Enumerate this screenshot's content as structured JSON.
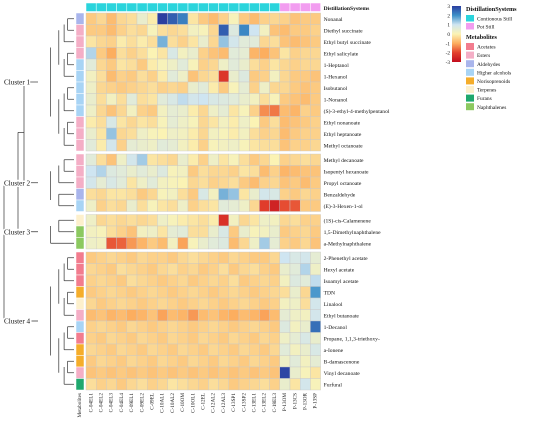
{
  "chart_data": {
    "type": "heatmap",
    "columns": [
      "C-04EL1",
      "C-04EL2",
      "C-04EL3",
      "C-04EL4",
      "C-09EL1",
      "C-09EL2",
      "C-09EL",
      "C-10AL1",
      "C-10AL2",
      "C-10OM",
      "C-10OL1",
      "C-12EL",
      "C-12AL2",
      "C-12AL3",
      "C-13SP1",
      "C-13SP2",
      "C-13EL1",
      "C-13EL2",
      "C-18EL3",
      "P-13OM",
      "P-13CS",
      "P-13OR",
      "P-13SP"
    ],
    "rows": [
      "Nonanal",
      "Diethyl succinate",
      "Ethyl butyl succinate",
      "Ethyl salicylate",
      "1-Heptanol",
      "1-Hexanol",
      "Isobutanol",
      "1-Nonanol",
      "(S)-3-ethyl-4-methylpentanol",
      "Ethyl nonanoate",
      "Ethyl heptanoate",
      "Methyl octanoate",
      "Methyl decanoate",
      "Isopentyl hexanoate",
      "Propyl octanoate",
      "Benzaldehyde",
      "(E)-3-Hexen-1-ol",
      "(1S)-cis-Calamenene",
      "1,5-Dimethylnaphthalene",
      "a-Methylnaphthalene",
      "2-Phenethyl acetate",
      "Hexyl acetate",
      "Isoamyl acetate",
      "TDN",
      "Linalool",
      "Ethyl butanoate",
      "1-Decanol",
      "Propane, 1,1,3-triethoxy-",
      "a-Ionene",
      "B-damascenone",
      "Vinyl decanoate",
      "Furfural"
    ],
    "values": [
      [
        -0.6,
        -0.4,
        -0.8,
        -0.4,
        -0.3,
        0.4,
        -0.1,
        3.0,
        2.6,
        2.2,
        -0.2,
        -0.6,
        -0.8,
        -0.5,
        0.1,
        -0.6,
        -0.8,
        -0.5,
        -0.4,
        -0.5,
        -0.7,
        -0.6,
        -0.6
      ],
      [
        -0.6,
        -0.6,
        -0.8,
        -0.5,
        -0.3,
        -0.4,
        0.1,
        -0.3,
        -0.4,
        -0.3,
        0.2,
        0.1,
        -0.4,
        2.6,
        0.7,
        2.1,
        1.0,
        0.2,
        -0.7,
        -0.8,
        -0.6,
        -0.6,
        -0.5
      ],
      [
        -0.2,
        -0.4,
        -0.5,
        -0.1,
        -0.3,
        -0.1,
        -0.3,
        1.6,
        -0.3,
        -0.5,
        -0.2,
        0.4,
        -0.4,
        1.4,
        0.9,
        0.6,
        0.6,
        -0.4,
        -0.3,
        -0.7,
        -0.8,
        -0.7,
        -0.6
      ],
      [
        1.2,
        -0.6,
        -1.0,
        -0.3,
        -0.5,
        -0.3,
        0.0,
        -0.2,
        0.8,
        0.2,
        0.4,
        -0.5,
        -0.7,
        -0.8,
        0.6,
        0.5,
        -0.9,
        -1.0,
        -0.7,
        -0.2,
        -0.5,
        -0.4,
        -0.4
      ],
      [
        0.6,
        -0.4,
        -0.6,
        -0.2,
        -0.3,
        -0.6,
        -0.1,
        0.1,
        0.3,
        0.6,
        0.1,
        -0.5,
        -0.4,
        0.3,
        0.6,
        0.4,
        -0.3,
        -0.5,
        -0.2,
        -0.4,
        -0.5,
        -0.4,
        -0.4
      ],
      [
        0.2,
        -0.3,
        -0.8,
        -0.5,
        -0.6,
        -0.3,
        -0.5,
        -0.1,
        0.6,
        0.3,
        -0.7,
        -0.4,
        -0.3,
        -2.2,
        0.4,
        0.7,
        -0.6,
        -0.5,
        0.2,
        -0.4,
        -0.6,
        -0.6,
        -0.7
      ],
      [
        0.3,
        -0.4,
        -0.5,
        -0.6,
        -0.5,
        -0.4,
        -0.3,
        -0.5,
        -0.4,
        -0.5,
        0.4,
        0.6,
        -0.1,
        -0.6,
        0.1,
        0.5,
        -0.5,
        0.3,
        -0.4,
        -0.4,
        -0.6,
        -0.7,
        -0.6
      ],
      [
        0.4,
        -0.3,
        0.2,
        -0.3,
        0.6,
        -0.3,
        -0.2,
        0.6,
        0.8,
        1.1,
        0.9,
        1.0,
        0.8,
        0.7,
        0.6,
        0.4,
        0.2,
        -0.3,
        0.1,
        -0.6,
        -0.7,
        -0.8,
        -0.6
      ],
      [
        0.3,
        -0.4,
        -0.7,
        -0.4,
        0.2,
        -0.5,
        -0.6,
        0.2,
        0.5,
        0.4,
        -0.1,
        -0.4,
        0.3,
        0.5,
        -0.2,
        0.1,
        -0.5,
        -1.3,
        -1.5,
        -0.8,
        -0.9,
        -0.5,
        -0.6
      ],
      [
        -0.1,
        -0.3,
        0.8,
        -0.2,
        -0.4,
        -0.2,
        -0.3,
        0.1,
        0.5,
        0.3,
        0.1,
        -0.4,
        -0.2,
        0.2,
        -0.1,
        0.3,
        0.0,
        -0.6,
        -0.3,
        -0.8,
        -0.7,
        -0.6,
        -0.5
      ],
      [
        0.4,
        -0.2,
        1.4,
        -0.4,
        -0.3,
        0.3,
        0.1,
        0.0,
        0.3,
        0.2,
        -0.1,
        -0.4,
        0.2,
        0.1,
        -0.1,
        0.2,
        -0.3,
        -0.5,
        -0.4,
        -0.8,
        -0.6,
        -0.5,
        -0.5
      ],
      [
        0.6,
        -0.1,
        0.9,
        -0.5,
        0.5,
        0.4,
        0.3,
        0.6,
        0.5,
        0.2,
        -0.1,
        -0.5,
        0.1,
        0.2,
        0.3,
        0.1,
        -0.2,
        -0.3,
        -0.3,
        -0.7,
        -0.5,
        -0.5,
        -0.4
      ],
      [
        0.6,
        -0.3,
        -0.7,
        0.3,
        0.9,
        1.3,
        -0.2,
        -0.3,
        -0.4,
        0.4,
        -0.1,
        -0.5,
        0.3,
        -0.2,
        0.1,
        -0.3,
        -0.6,
        -0.4,
        0.0,
        -0.5,
        -0.4,
        -0.3,
        -0.4
      ],
      [
        1.0,
        1.2,
        0.7,
        0.6,
        0.4,
        0.6,
        0.4,
        0.7,
        0.1,
        0.2,
        -0.6,
        -0.3,
        -0.4,
        -0.4,
        -0.5,
        -0.2,
        -0.3,
        -0.8,
        -0.5,
        -0.9,
        -0.8,
        -0.7,
        -0.7
      ],
      [
        0.9,
        0.5,
        0.8,
        0.6,
        -0.2,
        0.3,
        0.6,
        0.2,
        0.1,
        0.0,
        -0.4,
        -0.3,
        -0.5,
        -0.4,
        -0.3,
        -0.6,
        -0.8,
        -0.5,
        -0.4,
        -0.7,
        -0.6,
        -0.8,
        -0.6
      ],
      [
        -0.3,
        -0.4,
        -0.2,
        -0.2,
        -0.3,
        -0.6,
        -0.4,
        0.1,
        0.2,
        -0.3,
        -0.6,
        0.8,
        0.2,
        1.6,
        1.4,
        -0.2,
        0.4,
        0.9,
        0.8,
        -0.5,
        -0.6,
        -0.4,
        -0.5
      ],
      [
        0.3,
        -0.5,
        -0.3,
        -0.4,
        0.4,
        -0.3,
        0.1,
        -0.2,
        -0.3,
        0.3,
        -0.5,
        -0.3,
        -0.2,
        0.6,
        0.5,
        0.3,
        -0.4,
        -2.1,
        -2.6,
        -1.9,
        -1.8,
        -0.6,
        -0.6
      ],
      [
        0.3,
        -0.4,
        -0.3,
        -0.4,
        -0.3,
        -0.4,
        -0.3,
        0.3,
        0.1,
        -0.1,
        -0.2,
        -0.3,
        -0.1,
        -2.3,
        0.2,
        -0.4,
        -0.2,
        0.3,
        0.2,
        -0.4,
        -0.3,
        -0.5,
        -0.5
      ],
      [
        0.2,
        0.1,
        -0.3,
        -0.5,
        -0.7,
        0.2,
        0.3,
        -0.2,
        0.5,
        0.6,
        -0.3,
        -0.3,
        0.4,
        0.8,
        -0.6,
        0.4,
        0.1,
        0.2,
        0.4,
        -0.6,
        -0.5,
        -0.4,
        -0.6
      ],
      [
        0.3,
        0.2,
        -1.8,
        -1.7,
        -1.2,
        -0.9,
        -0.6,
        -0.8,
        0.2,
        -1.1,
        0.1,
        0.4,
        0.6,
        0.7,
        -0.8,
        -0.4,
        0.3,
        1.3,
        0.5,
        -0.5,
        -0.6,
        -0.4,
        -0.7
      ],
      [
        -0.6,
        -0.5,
        -0.4,
        -0.5,
        -0.6,
        -0.4,
        -0.5,
        -0.5,
        -0.6,
        -0.4,
        -0.3,
        -0.4,
        -0.5,
        -0.6,
        -0.4,
        -0.5,
        -0.6,
        -0.6,
        -0.4,
        1.0,
        0.8,
        0.9,
        0.5
      ],
      [
        -0.4,
        -0.5,
        -0.6,
        -0.3,
        -0.4,
        -0.5,
        -0.6,
        -0.4,
        -0.3,
        -0.5,
        -0.4,
        -0.6,
        -0.5,
        -0.3,
        -0.6,
        -0.4,
        -0.3,
        -0.5,
        -0.6,
        0.4,
        0.6,
        1.2,
        0.3
      ],
      [
        -0.5,
        -0.4,
        -0.5,
        -0.6,
        -0.3,
        -0.4,
        -0.5,
        -0.6,
        -0.5,
        -0.4,
        -0.6,
        -0.5,
        -0.4,
        -0.5,
        -0.3,
        -0.6,
        -0.5,
        -0.4,
        -0.5,
        0.2,
        0.7,
        0.6,
        1.1
      ],
      [
        -0.6,
        -0.5,
        -0.4,
        -0.5,
        -0.6,
        -0.5,
        -0.4,
        -0.5,
        -0.6,
        -0.5,
        -0.4,
        -0.5,
        -0.6,
        -0.5,
        -0.4,
        -0.5,
        -0.6,
        -0.5,
        -0.4,
        -0.3,
        0.4,
        -0.4,
        1.9
      ],
      [
        -0.4,
        -0.6,
        -0.5,
        -0.4,
        -0.5,
        -0.6,
        -0.5,
        -0.4,
        -0.5,
        -0.6,
        -0.5,
        -0.4,
        -0.5,
        -0.6,
        -0.5,
        -0.4,
        -0.5,
        -0.6,
        -0.5,
        0.2,
        0.3,
        -0.3,
        0.9
      ],
      [
        -0.8,
        -0.7,
        -0.9,
        -0.8,
        -1.0,
        -0.9,
        -0.7,
        -1.1,
        -0.8,
        -0.9,
        -1.2,
        -0.8,
        -0.7,
        -0.9,
        -1.0,
        -0.8,
        -0.9,
        -1.1,
        -0.8,
        0.5,
        0.3,
        0.2,
        0.9
      ],
      [
        -0.5,
        -0.4,
        -0.5,
        -0.6,
        -0.4,
        -0.5,
        -0.6,
        -0.5,
        -0.4,
        -0.5,
        -0.6,
        -0.5,
        -0.4,
        -0.5,
        -0.6,
        -0.5,
        -0.4,
        -0.5,
        -0.6,
        0.7,
        0.2,
        0.4,
        2.4
      ],
      [
        -0.5,
        -0.6,
        -0.4,
        -0.5,
        -0.6,
        -0.4,
        -0.5,
        -0.6,
        -0.4,
        -0.5,
        -0.6,
        -0.4,
        -0.5,
        -0.6,
        -0.4,
        -0.5,
        -0.6,
        -0.4,
        -0.5,
        0.3,
        0.5,
        0.8,
        0.4
      ],
      [
        -0.4,
        -0.5,
        -0.6,
        -0.4,
        -0.5,
        -0.6,
        -0.4,
        -0.5,
        -0.6,
        -0.4,
        -0.5,
        -0.6,
        -0.4,
        -0.5,
        -0.6,
        -0.4,
        -0.5,
        -0.6,
        -0.4,
        0.6,
        0.2,
        0.4,
        0.8
      ],
      [
        -0.6,
        -0.4,
        -0.5,
        -0.6,
        -0.4,
        -0.5,
        -0.6,
        -0.4,
        -0.5,
        -0.6,
        -0.4,
        -0.5,
        -0.6,
        -0.4,
        -0.5,
        -0.6,
        -0.4,
        -0.5,
        -0.6,
        0.3,
        0.6,
        0.2,
        0.5
      ],
      [
        -0.7,
        -0.6,
        -0.7,
        -0.6,
        -0.7,
        -0.6,
        -0.7,
        -0.6,
        -0.7,
        -0.6,
        -0.7,
        -0.6,
        -0.7,
        -0.6,
        -0.7,
        -0.6,
        -0.7,
        -0.6,
        -0.7,
        2.9,
        0.4,
        0.1,
        -0.2
      ],
      [
        -0.3,
        -0.5,
        -0.4,
        -0.6,
        -0.4,
        -0.3,
        -0.5,
        -0.4,
        -0.2,
        -0.3,
        -0.4,
        -0.5,
        -0.3,
        -0.4,
        -0.6,
        -0.5,
        -0.4,
        -0.3,
        -0.5,
        0.4,
        -0.2,
        0.9,
        0.1
      ]
    ],
    "column_groups": [
      "Continuous Still",
      "Continuous Still",
      "Continuous Still",
      "Continuous Still",
      "Continuous Still",
      "Continuous Still",
      "Continuous Still",
      "Continuous Still",
      "Continuous Still",
      "Continuous Still",
      "Continuous Still",
      "Continuous Still",
      "Continuous Still",
      "Continuous Still",
      "Continuous Still",
      "Continuous Still",
      "Continuous Still",
      "Continuous Still",
      "Continuous Still",
      "Pot Still",
      "Pot Still",
      "Pot Still",
      "Pot Still"
    ],
    "row_groups": [
      "Aldehydes",
      "Esters",
      "Esters",
      "Esters",
      "Higher alcohols",
      "Higher alcohols",
      "Higher alcohols",
      "Higher alcohols",
      "Higher alcohols",
      "Esters",
      "Esters",
      "Esters",
      "Esters",
      "Esters",
      "Esters",
      "Aldehydes",
      "Higher alcohols",
      "Terpenes",
      "Naphthalenes",
      "Naphthalenes",
      "Acetates",
      "Acetates",
      "Acetates",
      "Norisoprenoids",
      "Terpenes",
      "Esters",
      "Higher alcohols",
      "Acetates",
      "Norisoprenoids",
      "Norisoprenoids",
      "Esters",
      "Furans"
    ],
    "clusters": [
      {
        "label": "Cluster 1",
        "start": 0,
        "end": 11
      },
      {
        "label": "Cluster 2",
        "start": 12,
        "end": 16
      },
      {
        "label": "Cluster 3",
        "start": 17,
        "end": 19
      },
      {
        "label": "Cluster 4",
        "start": 20,
        "end": 31
      }
    ],
    "group_annotation_label": "DistillationSystems",
    "metabolite_annotation_label": "Metabolites",
    "color_scale": {
      "min": -3,
      "max": 3,
      "ticks": [
        3,
        2,
        1,
        0,
        -1,
        -2,
        -3
      ],
      "colors": [
        "#2b3ea0",
        "#3d8fc8",
        "#cfe5f1",
        "#fbf3b4",
        "#fcae5f",
        "#e3412d",
        "#c20d1d"
      ]
    },
    "legend": {
      "distillation_title": "DistillationSystems",
      "distillation": [
        {
          "name": "Contionous Still",
          "color": "#2ad4dc"
        },
        {
          "name": "Pot Still",
          "color": "#f29df0"
        }
      ],
      "metabolites_title": "Metabolites",
      "metabolites": [
        {
          "name": "Acetates",
          "color": "#f27c8e"
        },
        {
          "name": "Esters",
          "color": "#f4aec6"
        },
        {
          "name": "Aldehydes",
          "color": "#a9b5ec"
        },
        {
          "name": "Higher alcohols",
          "color": "#a8d4f5"
        },
        {
          "name": "Norisoprenoids",
          "color": "#f5ad2a"
        },
        {
          "name": "Terpenes",
          "color": "#fdf0cc"
        },
        {
          "name": "Furans",
          "color": "#1fa86e"
        },
        {
          "name": "Naphthalenes",
          "color": "#8cc960"
        }
      ],
      "position": "top-right"
    }
  }
}
